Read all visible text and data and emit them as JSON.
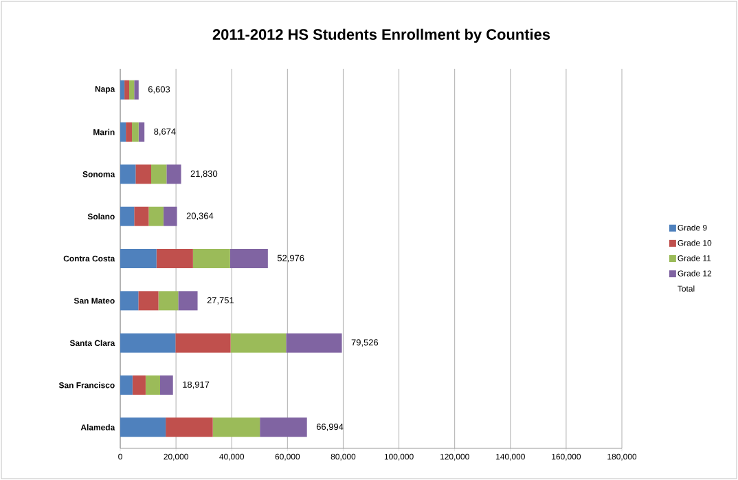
{
  "chart_data": {
    "type": "bar",
    "orientation": "horizontal",
    "stacked": true,
    "title": "2011-2012 HS Students Enrollment by Counties",
    "categories": [
      "Napa",
      "Marin",
      "Sonoma",
      "Solano",
      "Contra Costa",
      "San Mateo",
      "Santa Clara",
      "San Francisco",
      "Alameda"
    ],
    "series": [
      {
        "name": "Grade 9",
        "color": "#4f81bd",
        "values": [
          1500,
          2000,
          5500,
          5000,
          13000,
          6500,
          19800,
          4400,
          16300
        ]
      },
      {
        "name": "Grade 10",
        "color": "#c0504d",
        "values": [
          1700,
          2200,
          5600,
          5200,
          13100,
          7200,
          19800,
          4700,
          16900
        ]
      },
      {
        "name": "Grade 11",
        "color": "#9bbb59",
        "values": [
          1800,
          2400,
          5500,
          5300,
          13300,
          7100,
          19900,
          5200,
          16900
        ]
      },
      {
        "name": "Grade 12",
        "color": "#8064a2",
        "values": [
          1603,
          2074,
          5230,
          4864,
          13576,
          6951,
          20026,
          4617,
          16894
        ]
      },
      {
        "name": "Total",
        "values": [
          null,
          null,
          null,
          null,
          null,
          null,
          null,
          null,
          null
        ]
      }
    ],
    "totals": [
      "6,603",
      "8,674",
      "21,830",
      "20,364",
      "52,976",
      "27,751",
      "79,526",
      "18,917",
      "66,994"
    ],
    "xlim": [
      0,
      180000
    ],
    "xticks": [
      0,
      {
        "value": 20000,
        "label": "20,000"
      },
      {
        "value": 40000,
        "label": "40,000"
      },
      {
        "value": 60000,
        "label": "60,000"
      },
      {
        "value": 80000,
        "label": "80,000"
      },
      {
        "value": 100000,
        "label": "100,000"
      },
      {
        "value": 120000,
        "label": "120,000"
      },
      {
        "value": 140000,
        "label": "140,000"
      },
      {
        "value": 160000,
        "label": "160,000"
      },
      {
        "value": 180000,
        "label": "180,000"
      }
    ],
    "grid": "x",
    "legend": "right"
  }
}
